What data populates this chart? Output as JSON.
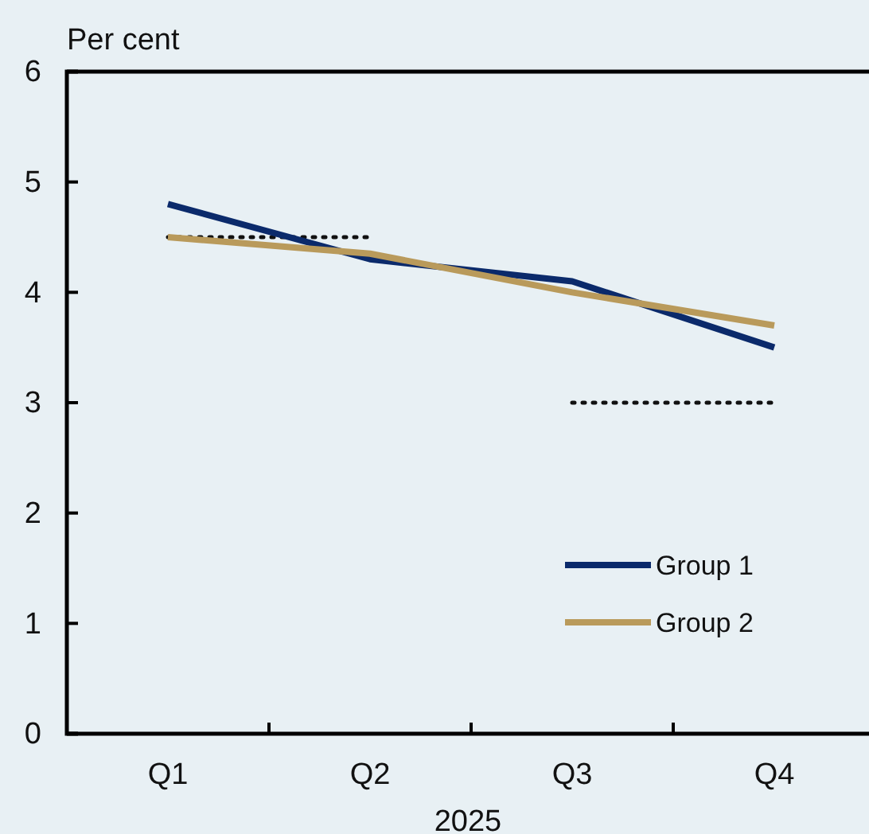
{
  "chart_data": {
    "type": "line",
    "ylabel": "Per cent",
    "xlabel": "2025",
    "categories": [
      "Q1",
      "Q2",
      "Q3",
      "Q4"
    ],
    "ylim": [
      0,
      6
    ],
    "yticks": [
      0,
      1,
      2,
      3,
      4,
      5,
      6
    ],
    "grid": false,
    "legend": "bottom right",
    "series": [
      {
        "name": "Group 1",
        "color": "#0b2a6b",
        "values": [
          4.8,
          4.3,
          4.1,
          3.5
        ]
      },
      {
        "name": "Group 2",
        "color": "#b99a5b",
        "values": [
          4.5,
          4.35,
          4.0,
          3.7
        ]
      },
      {
        "color": "#111111",
        "line_style": "dotted",
        "values": [
          4.5,
          4.5,
          null,
          null
        ]
      },
      {
        "color": "#111111",
        "line_style": "dotted",
        "values": [
          null,
          null,
          3.0,
          3.0
        ]
      }
    ]
  }
}
